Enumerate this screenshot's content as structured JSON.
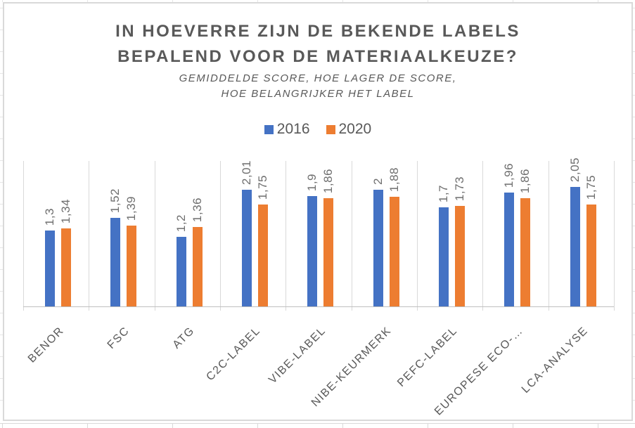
{
  "chart_data": {
    "type": "bar",
    "title_lines": [
      "IN HOEVERRE ZIJN DE BEKENDE LABELS",
      "BEPALEND VOOR DE MATERIAALKEUZE?"
    ],
    "subtitle_lines": [
      "GEMIDDELDE SCORE, HOE LAGER DE SCORE,",
      "HOE BELANGRIJKER HET LABEL"
    ],
    "legend_position": "top",
    "categories": [
      "BENOR",
      "FSC",
      "ATG",
      "C2C-LABEL",
      "VIBE-LABEL",
      "NIBE-KEURMERK",
      "PEFC-LABEL",
      "EUROPESE ECO-…",
      "LCA-ANALYSE"
    ],
    "series": [
      {
        "name": "2016",
        "color": "#4472C4",
        "values": [
          1.3,
          1.52,
          1.2,
          2.01,
          1.9,
          2,
          1.7,
          1.96,
          2.05
        ],
        "value_labels": [
          "1,3",
          "1,52",
          "1,2",
          "2,01",
          "1,9",
          "2",
          "1,7",
          "1,96",
          "2,05"
        ]
      },
      {
        "name": "2020",
        "color": "#ED7D31",
        "values": [
          1.34,
          1.39,
          1.36,
          1.75,
          1.86,
          1.88,
          1.73,
          1.86,
          1.75
        ],
        "value_labels": [
          "1,34",
          "1,39",
          "1,36",
          "1,75",
          "1,86",
          "1,88",
          "1,73",
          "1,86",
          "1,75"
        ]
      }
    ],
    "ylim": [
      0,
      2.5
    ],
    "grid": "vertical category separators only, no horizontal gridlines, y-axis hidden",
    "text_color": "#595959",
    "value_label_color": "#6e6e6e",
    "axis_line_color": "#bfbfbf",
    "gridline_color": "#d9d9d9",
    "chart_border_color": "#d9d9d9"
  }
}
